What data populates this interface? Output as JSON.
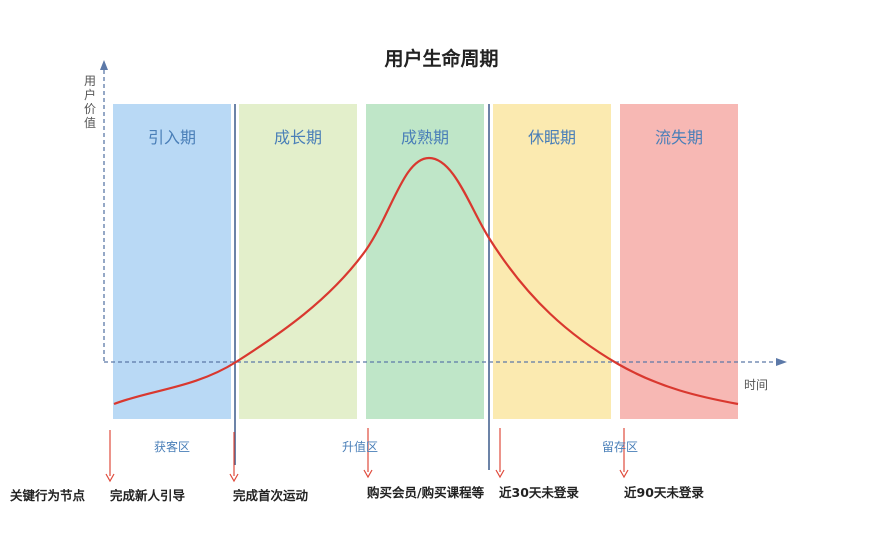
{
  "title": "用户生命周期",
  "y_axis_label": "用户价值",
  "x_axis_label": "时间",
  "phases": [
    {
      "label": "引入期",
      "color": "#b9d9f5"
    },
    {
      "label": "成长期",
      "color": "#e3efcb"
    },
    {
      "label": "成熟期",
      "color": "#bfe6c8"
    },
    {
      "label": "休眠期",
      "color": "#fbeab0"
    },
    {
      "label": "流失期",
      "color": "#f7b8b4"
    }
  ],
  "zones": [
    "获客区",
    "升值区",
    "留存区"
  ],
  "key_events": {
    "row_label": "关键行为节点",
    "items": [
      "完成新人引导",
      "完成首次运动",
      "购买会员/购买课程等",
      "近30天未登录",
      "近90天未登录"
    ]
  },
  "colors": {
    "curve": "#d9382f",
    "axis": "#5c79a8",
    "divider": "#3c5a8a",
    "event_arrow": "#e04b3c",
    "label_blue": "#4a7fb8"
  }
}
